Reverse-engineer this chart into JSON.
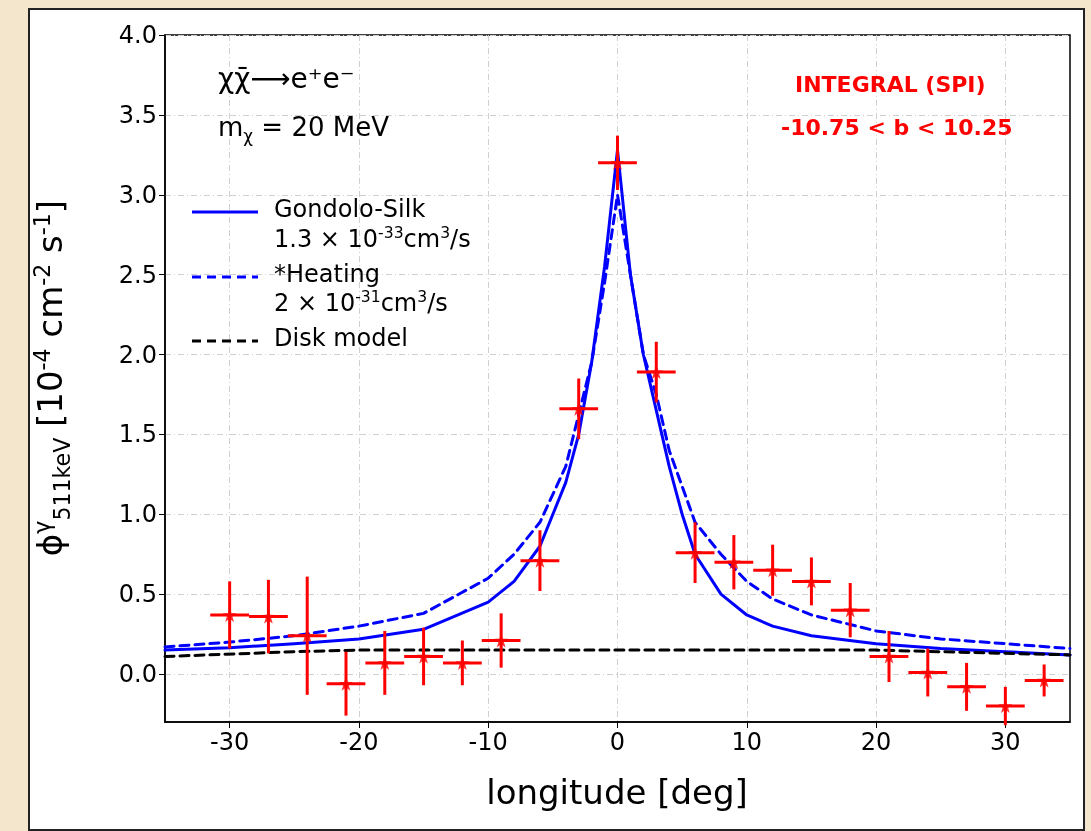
{
  "chart_data": {
    "type": "line",
    "xlabel": "longitude [deg]",
    "ylabel": "ϕ$^{γ}$$_{511keV}$ [10$^{-4}$ cm$^{-2}$ s$^{-1}$]",
    "annotations": [
      "χχ̄⟶e⁺e⁻",
      "m$_{χ}$ = 20 MeV",
      "INTEGRAL (SPI)",
      "-10.75 < b < 10.25"
    ],
    "xlim": [
      -35,
      35
    ],
    "xticks": [
      -30,
      -20,
      -10,
      0,
      10,
      20,
      30
    ],
    "ylim": [
      -0.3,
      4.0
    ],
    "yticks": [
      {
        "value": 0,
        "label": "0.0"
      },
      0.5,
      {
        "value": 1,
        "label": "1.0"
      },
      1.5,
      {
        "value": 2,
        "label": "2.0"
      },
      2.5,
      {
        "value": 3,
        "label": "3.0"
      },
      3.5,
      {
        "value": 4,
        "label": "4.0"
      }
    ],
    "grid": true,
    "legend": "left",
    "series": [
      {
        "type": "scatter",
        "color": "#ff0000",
        "marker": "star",
        "x": [
          -30,
          -27,
          -24,
          -21,
          -18,
          -15,
          -12,
          -9,
          -6,
          -3,
          0,
          3,
          6,
          9,
          12,
          15,
          18,
          21,
          24,
          27,
          30,
          33
        ],
        "values": [
          0.37,
          0.36,
          0.24,
          -0.06,
          0.07,
          0.11,
          0.07,
          0.21,
          0.71,
          1.66,
          3.2,
          1.89,
          0.76,
          0.7,
          0.65,
          0.58,
          0.4,
          0.11,
          0.01,
          -0.08,
          -0.2,
          -0.04
        ],
        "errors": [
          0.21,
          0.23,
          0.37,
          0.2,
          0.2,
          0.18,
          0.14,
          0.17,
          0.19,
          0.19,
          0.17,
          0.19,
          0.19,
          0.17,
          0.16,
          0.15,
          0.17,
          0.16,
          0.15,
          0.15,
          0.12,
          0.1
        ],
        "xerrors": [
          1.5,
          1.5,
          1.5,
          1.5,
          1.5,
          1.5,
          1.5,
          1.5,
          1.5,
          1.5,
          1.5,
          1.5,
          1.5,
          1.5,
          1.5,
          1.5,
          1.5,
          1.5,
          1.5,
          1.5,
          1.5,
          1.5
        ]
      },
      {
        "name": "Gondolo-Silk\n1.3 × 10$^{-33}$cm$^{3}$/s",
        "color": "#0000ff",
        "line_style": "solid",
        "marker": "none",
        "x": [
          -35,
          -30,
          -25,
          -20,
          -15,
          -10,
          -8,
          -6,
          -4,
          -3,
          -2,
          -1,
          0,
          1,
          2,
          3,
          4,
          5,
          6,
          8,
          10,
          12,
          15,
          20,
          25,
          30,
          35
        ],
        "values": [
          0.15,
          0.165,
          0.19,
          0.22,
          0.28,
          0.45,
          0.58,
          0.8,
          1.2,
          1.5,
          1.95,
          2.55,
          3.28,
          2.5,
          2.0,
          1.65,
          1.3,
          1.0,
          0.75,
          0.5,
          0.37,
          0.3,
          0.24,
          0.19,
          0.16,
          0.14,
          0.12
        ]
      },
      {
        "name": "*Heating\n2 × 10$^{-31}$cm$^{3}$/s",
        "color": "#0000ff",
        "line_style": "dashed",
        "marker": "none",
        "x": [
          -35,
          -30,
          -25,
          -20,
          -15,
          -10,
          -8,
          -6,
          -4,
          -2,
          -1,
          0,
          1,
          2,
          3,
          4,
          6,
          8,
          10,
          12,
          15,
          20,
          25,
          30,
          35
        ],
        "values": [
          0.17,
          0.2,
          0.24,
          0.3,
          0.38,
          0.6,
          0.75,
          0.95,
          1.3,
          1.95,
          2.45,
          3.0,
          2.5,
          2.0,
          1.75,
          1.4,
          0.95,
          0.75,
          0.58,
          0.47,
          0.37,
          0.27,
          0.22,
          0.19,
          0.16
        ]
      },
      {
        "name": "Disk model",
        "color": "#000000",
        "line_style": "dashed",
        "marker": "none",
        "x": [
          -35,
          -25,
          -20,
          0,
          20,
          25,
          35
        ],
        "values": [
          0.11,
          0.14,
          0.15,
          0.15,
          0.15,
          0.14,
          0.12
        ]
      }
    ]
  }
}
